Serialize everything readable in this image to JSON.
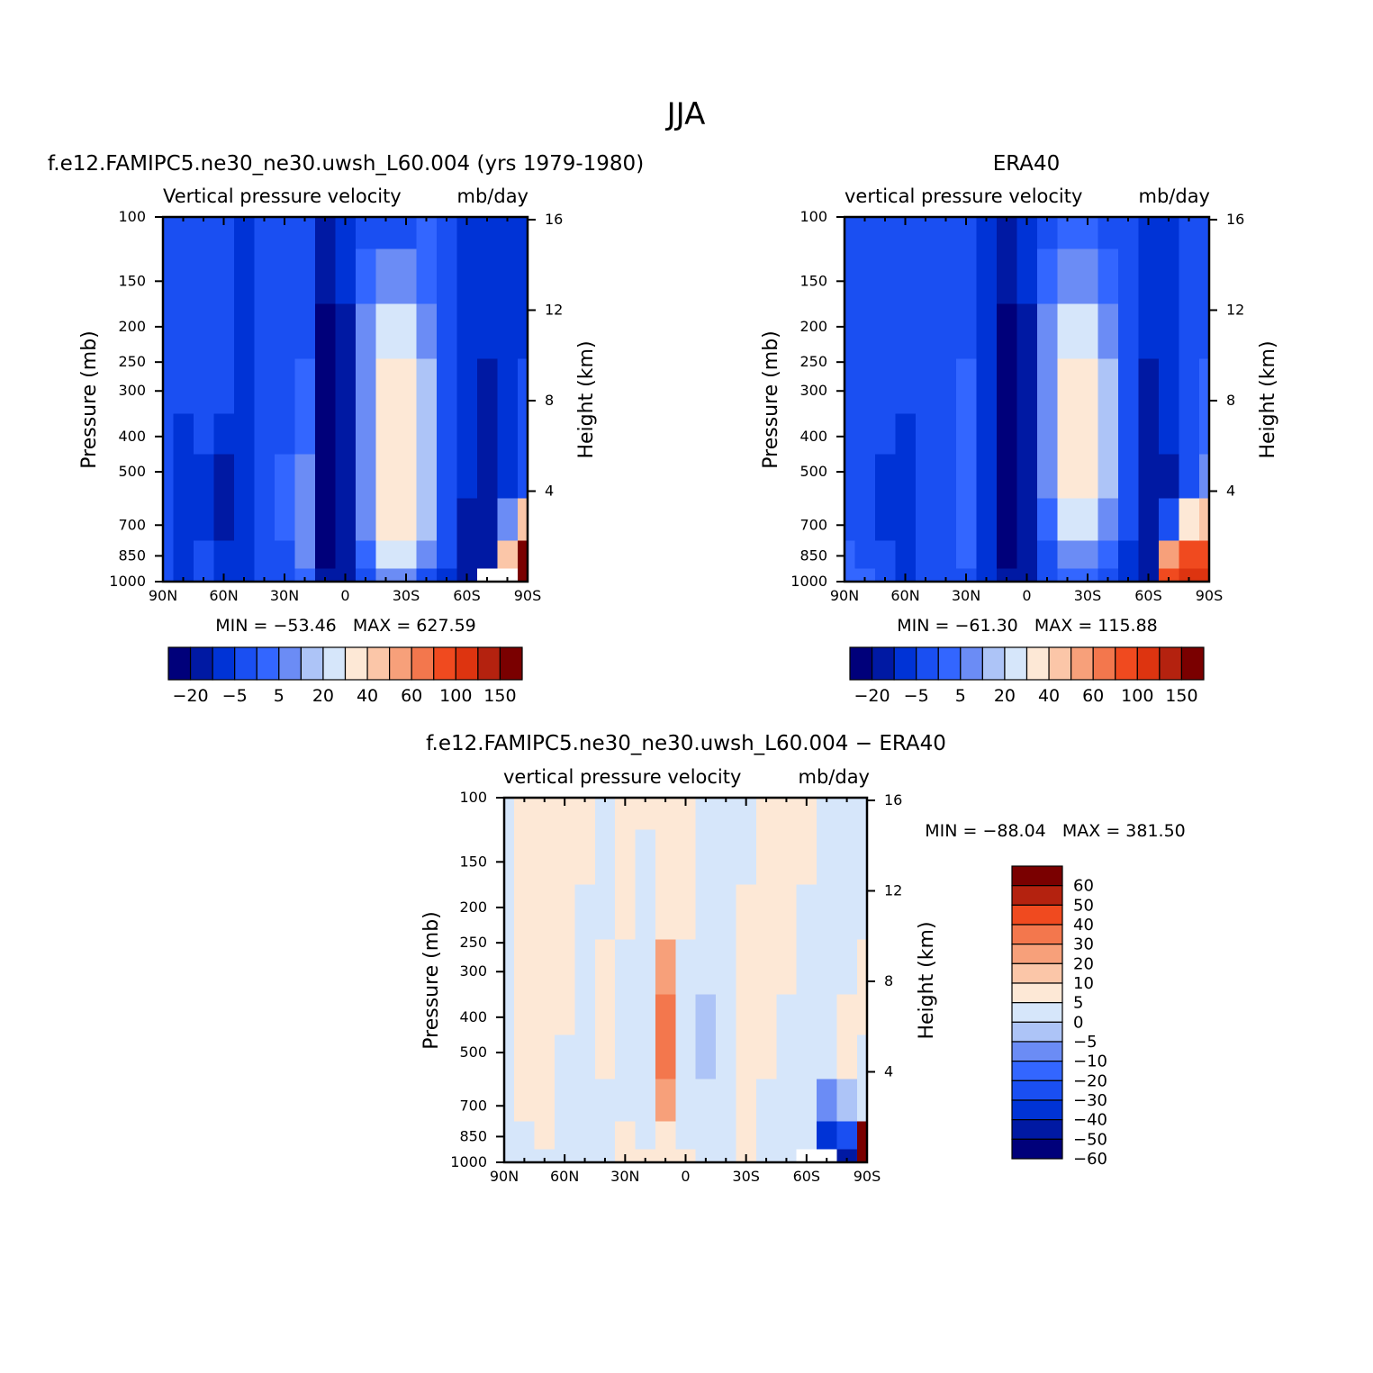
{
  "page": {
    "title": "JJA"
  },
  "colors": {
    "model_obs_scale": [
      "#00007a",
      "#0019a3",
      "#0033d6",
      "#1a4ff2",
      "#3366ff",
      "#6b8cf5",
      "#adc4f7",
      "#d6e6fa",
      "#fde8d6",
      "#fbc6a8",
      "#f7a07a",
      "#f3774d",
      "#f04a1f",
      "#dd3410",
      "#b4220f",
      "#7a0000"
    ],
    "diff_scale": [
      "#00007a",
      "#0019a3",
      "#0033d6",
      "#1a4ff2",
      "#3366ff",
      "#6b8cf5",
      "#adc4f7",
      "#d6e6fa",
      "#fde8d6",
      "#fbc6a8",
      "#f7a07a",
      "#f3774d",
      "#f04a1f",
      "#b4220f",
      "#7a0000"
    ],
    "gap_fill": "#ffffff"
  },
  "panels": [
    {
      "id": "model",
      "title": "f.e12.FAMIPC5.ne30_ne30.uwsh_L60.004 (yrs 1979-1980)",
      "subtitle_left": "Vertical pressure velocity",
      "subtitle_right": "mb/day",
      "ylabel_left": "Pressure (mb)",
      "ylabel_right": "Height (km)",
      "stats": "MIN = -53.46   MAX = 627.59",
      "colorbar_orientation": "horizontal",
      "colorbar_labels": [
        "-20",
        "-5",
        "5",
        "20",
        "40",
        "60",
        "100",
        "150"
      ]
    },
    {
      "id": "obs",
      "title": "ERA40",
      "subtitle_left": "vertical pressure velocity",
      "subtitle_right": "mb/day",
      "ylabel_left": "Pressure (mb)",
      "ylabel_right": "Height (km)",
      "stats": "MIN = -61.30   MAX = 115.88",
      "colorbar_orientation": "horizontal",
      "colorbar_labels": [
        "-20",
        "-5",
        "5",
        "20",
        "40",
        "60",
        "100",
        "150"
      ]
    },
    {
      "id": "diff",
      "title": "f.e12.FAMIPC5.ne30_ne30.uwsh_L60.004 - ERA40",
      "subtitle_left": "vertical pressure velocity",
      "subtitle_right": "mb/day",
      "ylabel_left": "Pressure (mb)",
      "ylabel_right": "Height (km)",
      "stats": "MIN = -88.04   MAX = 381.50",
      "colorbar_orientation": "vertical",
      "colorbar_labels": [
        "60",
        "50",
        "40",
        "30",
        "20",
        "10",
        "5",
        "0",
        "-5",
        "-10",
        "-20",
        "-30",
        "-40",
        "-50",
        "-60"
      ]
    }
  ],
  "chart_data": [
    {
      "type": "heatmap",
      "panel": "model",
      "title": "f.e12.FAMIPC5.ne30_ne30.uwsh_L60.004 (yrs 1979-1980)",
      "variable": "Vertical pressure velocity",
      "units": "mb/day",
      "x_ticks": [
        "90N",
        "60N",
        "30N",
        "0",
        "30S",
        "60S",
        "90S"
      ],
      "x_values": [
        90,
        60,
        30,
        0,
        -30,
        -60,
        -90
      ],
      "xlim": [
        90,
        -90
      ],
      "y_ticks": [
        100,
        150,
        200,
        250,
        300,
        400,
        500,
        700,
        850,
        1000
      ],
      "ylim": [
        1000,
        100
      ],
      "y_scale": "log",
      "y2_ticks": [
        16,
        12,
        8,
        4
      ],
      "y2_label": "Height (km)",
      "min": -53.46,
      "max": 627.59,
      "levels": [
        -30,
        -20,
        -10,
        -5,
        0,
        5,
        10,
        20,
        30,
        40,
        50,
        60,
        80,
        100,
        120,
        150
      ],
      "latitudes": [
        90,
        80,
        70,
        60,
        50,
        40,
        30,
        20,
        10,
        0,
        -10,
        -20,
        -30,
        -40,
        -50,
        -60,
        -70,
        -80,
        -90
      ],
      "pressure_levels": [
        100,
        150,
        200,
        300,
        400,
        500,
        700,
        850,
        1000
      ],
      "values": [
        [
          -10,
          -10,
          -10,
          -10,
          -20,
          -10,
          -10,
          -10,
          -25,
          -20,
          -10,
          -10,
          -10,
          -5,
          -10,
          -20,
          -20,
          -20,
          -20
        ],
        [
          -10,
          -10,
          -10,
          -10,
          -20,
          -10,
          -10,
          -10,
          -28,
          -20,
          -5,
          0,
          0,
          -5,
          -10,
          -20,
          -20,
          -20,
          -20
        ],
        [
          -10,
          -10,
          -10,
          -10,
          -20,
          -10,
          -10,
          -10,
          -32,
          -25,
          0,
          10,
          10,
          0,
          -10,
          -20,
          -20,
          -20,
          -20
        ],
        [
          -10,
          -10,
          -10,
          -10,
          -20,
          -10,
          -10,
          -5,
          -34,
          -30,
          0,
          20,
          20,
          5,
          -10,
          -20,
          -30,
          -20,
          -10
        ],
        [
          -10,
          -20,
          -10,
          -20,
          -20,
          -10,
          -10,
          -5,
          -34,
          -30,
          0,
          20,
          20,
          5,
          -10,
          -20,
          -30,
          -20,
          -10
        ],
        [
          -10,
          -20,
          -20,
          -30,
          -20,
          -10,
          -5,
          0,
          -34,
          -30,
          0,
          20,
          20,
          5,
          -10,
          -20,
          -30,
          -20,
          -10
        ],
        [
          -10,
          -20,
          -20,
          -30,
          -20,
          -10,
          -5,
          0,
          -34,
          -30,
          0,
          20,
          20,
          5,
          -10,
          -30,
          -30,
          0,
          30
        ],
        [
          -10,
          -20,
          -10,
          -20,
          -20,
          -10,
          -10,
          0,
          -34,
          -30,
          -5,
          10,
          10,
          0,
          -10,
          -30,
          -30,
          30,
          150
        ],
        [
          -10,
          -20,
          -10,
          -20,
          -20,
          -10,
          -10,
          -5,
          -30,
          -30,
          -10,
          0,
          0,
          -10,
          -20,
          -30,
          null,
          null,
          150
        ]
      ]
    },
    {
      "type": "heatmap",
      "panel": "obs",
      "title": "ERA40",
      "variable": "vertical pressure velocity",
      "units": "mb/day",
      "x_ticks": [
        "90N",
        "60N",
        "30N",
        "0",
        "30S",
        "60S",
        "90S"
      ],
      "x_values": [
        90,
        60,
        30,
        0,
        -30,
        -60,
        -90
      ],
      "xlim": [
        90,
        -90
      ],
      "y_ticks": [
        100,
        150,
        200,
        250,
        300,
        400,
        500,
        700,
        850,
        1000
      ],
      "ylim": [
        1000,
        100
      ],
      "y_scale": "log",
      "y2_ticks": [
        16,
        12,
        8,
        4
      ],
      "y2_label": "Height (km)",
      "min": -61.3,
      "max": 115.88,
      "levels": [
        -30,
        -20,
        -10,
        -5,
        0,
        5,
        10,
        20,
        30,
        40,
        50,
        60,
        80,
        100,
        120,
        150
      ],
      "latitudes": [
        90,
        80,
        70,
        60,
        50,
        40,
        30,
        20,
        10,
        0,
        -10,
        -20,
        -30,
        -40,
        -50,
        -60,
        -70,
        -80,
        -90
      ],
      "pressure_levels": [
        100,
        150,
        200,
        300,
        400,
        500,
        700,
        850,
        1000
      ],
      "values": [
        [
          -10,
          -10,
          -10,
          -10,
          -10,
          -10,
          -10,
          -20,
          -25,
          -20,
          -10,
          -5,
          -5,
          -10,
          -10,
          -20,
          -20,
          -10,
          -10
        ],
        [
          -10,
          -10,
          -10,
          -10,
          -10,
          -10,
          -10,
          -20,
          -28,
          -20,
          -5,
          0,
          0,
          -5,
          -10,
          -20,
          -20,
          -10,
          -10
        ],
        [
          -10,
          -10,
          -10,
          -10,
          -10,
          -10,
          -10,
          -20,
          -32,
          -25,
          0,
          10,
          10,
          0,
          -10,
          -20,
          -20,
          -10,
          -10
        ],
        [
          -10,
          -10,
          -10,
          -10,
          -10,
          -10,
          -5,
          -20,
          -34,
          -30,
          0,
          20,
          20,
          5,
          -10,
          -30,
          -20,
          -10,
          -5
        ],
        [
          -10,
          -10,
          -10,
          -20,
          -10,
          -10,
          -5,
          -20,
          -34,
          -30,
          0,
          20,
          20,
          5,
          -10,
          -30,
          -20,
          -10,
          -5
        ],
        [
          -10,
          -10,
          -20,
          -20,
          -10,
          -10,
          -5,
          -20,
          -34,
          -30,
          0,
          20,
          20,
          5,
          -10,
          -30,
          -30,
          -10,
          0
        ],
        [
          -10,
          -10,
          -20,
          -20,
          -10,
          -10,
          -5,
          -20,
          -34,
          -30,
          -5,
          10,
          10,
          0,
          -10,
          -30,
          -10,
          20,
          30
        ],
        [
          -5,
          -10,
          -10,
          -20,
          -10,
          -10,
          -5,
          -20,
          -34,
          -30,
          -10,
          0,
          0,
          -5,
          -20,
          -30,
          40,
          60,
          60
        ],
        [
          -5,
          -5,
          -10,
          -20,
          -10,
          -10,
          -10,
          -20,
          -30,
          -30,
          -10,
          -5,
          -5,
          -10,
          -20,
          -30,
          60,
          80,
          80
        ]
      ]
    },
    {
      "type": "heatmap",
      "panel": "diff",
      "title": "f.e12.FAMIPC5.ne30_ne30.uwsh_L60.004 - ERA40",
      "variable": "vertical pressure velocity",
      "units": "mb/day",
      "x_ticks": [
        "90N",
        "60N",
        "30N",
        "0",
        "30S",
        "60S",
        "90S"
      ],
      "x_values": [
        90,
        60,
        30,
        0,
        -30,
        -60,
        -90
      ],
      "xlim": [
        90,
        -90
      ],
      "y_ticks": [
        100,
        150,
        200,
        250,
        300,
        400,
        500,
        700,
        850,
        1000
      ],
      "ylim": [
        1000,
        100
      ],
      "y_scale": "log",
      "y2_ticks": [
        16,
        12,
        8,
        4
      ],
      "y2_label": "Height (km)",
      "min": -88.04,
      "max": 381.5,
      "levels": [
        -60,
        -50,
        -40,
        -30,
        -20,
        -10,
        -5,
        0,
        5,
        10,
        20,
        30,
        40,
        50,
        60
      ],
      "latitudes": [
        90,
        80,
        70,
        60,
        50,
        40,
        30,
        20,
        10,
        0,
        -10,
        -20,
        -30,
        -40,
        -50,
        -60,
        -70,
        -80,
        -90
      ],
      "pressure_levels": [
        100,
        150,
        200,
        300,
        400,
        500,
        700,
        850,
        1000
      ],
      "values": [
        [
          -2,
          2,
          2,
          2,
          2,
          -2,
          2,
          2,
          2,
          2,
          -2,
          -2,
          -2,
          2,
          2,
          2,
          -2,
          -2,
          -2
        ],
        [
          -2,
          2,
          2,
          2,
          2,
          -2,
          2,
          -2,
          2,
          2,
          -2,
          -2,
          -2,
          2,
          2,
          2,
          -2,
          -2,
          -2
        ],
        [
          -2,
          2,
          2,
          2,
          -2,
          -2,
          2,
          -2,
          2,
          2,
          -2,
          -2,
          2,
          2,
          2,
          -2,
          -2,
          -2,
          -2
        ],
        [
          -2,
          2,
          2,
          2,
          -2,
          2,
          -2,
          -5,
          10,
          -2,
          -5,
          -2,
          2,
          2,
          2,
          -2,
          -2,
          -2,
          2
        ],
        [
          -2,
          2,
          2,
          2,
          -2,
          2,
          -2,
          -5,
          20,
          -2,
          -10,
          -2,
          2,
          2,
          -2,
          -2,
          -2,
          2,
          2
        ],
        [
          -2,
          2,
          2,
          -2,
          -2,
          2,
          -2,
          -5,
          20,
          -2,
          -10,
          -2,
          2,
          2,
          -2,
          -2,
          -2,
          2,
          -2
        ],
        [
          -2,
          2,
          2,
          -2,
          -2,
          -2,
          -2,
          -5,
          10,
          -2,
          -5,
          -2,
          2,
          -2,
          -2,
          -2,
          -20,
          -10,
          -2
        ],
        [
          -2,
          -2,
          2,
          -2,
          -2,
          -2,
          2,
          -2,
          2,
          -2,
          -2,
          -2,
          2,
          -2,
          -2,
          -5,
          -50,
          -40,
          60
        ],
        [
          -5,
          -5,
          -2,
          -5,
          -2,
          -2,
          2,
          2,
          2,
          2,
          -2,
          -2,
          2,
          -2,
          -2,
          null,
          null,
          -60,
          60
        ]
      ]
    }
  ]
}
